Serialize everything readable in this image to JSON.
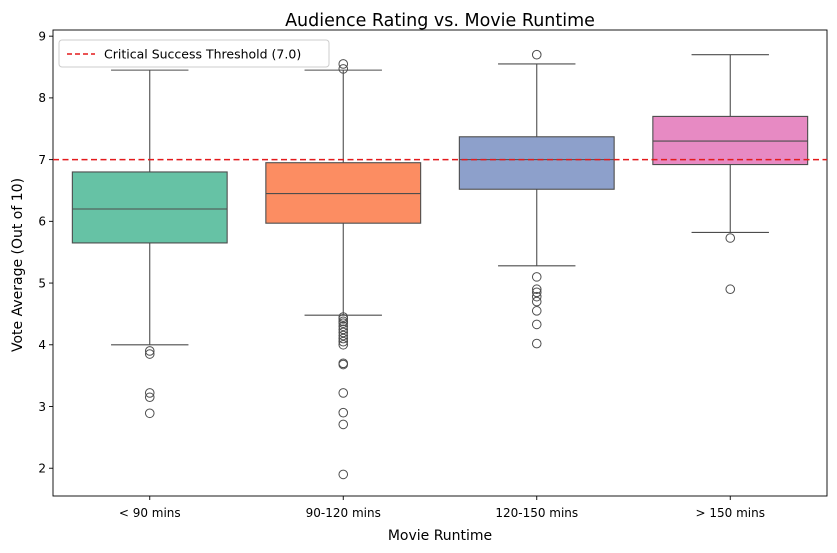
{
  "chart_data": {
    "type": "box",
    "title": "Audience Rating vs. Movie Runtime",
    "xlabel": "Movie Runtime",
    "ylabel": "Vote Average (Out of 10)",
    "ylim": [
      1.55,
      9.1
    ],
    "yticks": [
      2,
      3,
      4,
      5,
      6,
      7,
      8,
      9
    ],
    "categories": [
      "< 90 mins",
      "90-120 mins",
      "120-150 mins",
      "> 150 mins"
    ],
    "colors": [
      "#66c2a5",
      "#fc8d62",
      "#8da0cb",
      "#e78ac3"
    ],
    "boxes": [
      {
        "category": "< 90 mins",
        "whisker_low": 4.0,
        "q1": 5.65,
        "median": 6.2,
        "q3": 6.8,
        "whisker_high": 8.45,
        "outliers": [
          3.9,
          3.85,
          3.22,
          3.15,
          2.89
        ]
      },
      {
        "category": "90-120 mins",
        "whisker_low": 4.48,
        "q1": 5.97,
        "median": 6.45,
        "q3": 6.95,
        "whisker_high": 8.45,
        "outliers": [
          4.45,
          4.42,
          4.38,
          4.35,
          4.3,
          4.25,
          4.2,
          4.15,
          4.1,
          4.05,
          4.0,
          3.7,
          3.68,
          3.22,
          2.9,
          2.71,
          1.9,
          8.47,
          8.55
        ]
      },
      {
        "category": "120-150 mins",
        "whisker_low": 5.28,
        "q1": 6.52,
        "median": 7.0,
        "q3": 7.37,
        "whisker_high": 8.55,
        "outliers": [
          5.1,
          4.9,
          4.85,
          4.78,
          4.7,
          4.55,
          4.33,
          4.02,
          8.7
        ]
      },
      {
        "category": "> 150 mins",
        "whisker_low": 5.82,
        "q1": 6.92,
        "median": 7.3,
        "q3": 7.7,
        "whisker_high": 8.7,
        "outliers": [
          5.73,
          4.9
        ]
      }
    ],
    "reference_line": {
      "label": "Critical Success Threshold (7.0)",
      "value": 7.0,
      "color": "#e31a1c",
      "style": "dashed"
    },
    "legend_position": "top-left",
    "grid": false
  }
}
